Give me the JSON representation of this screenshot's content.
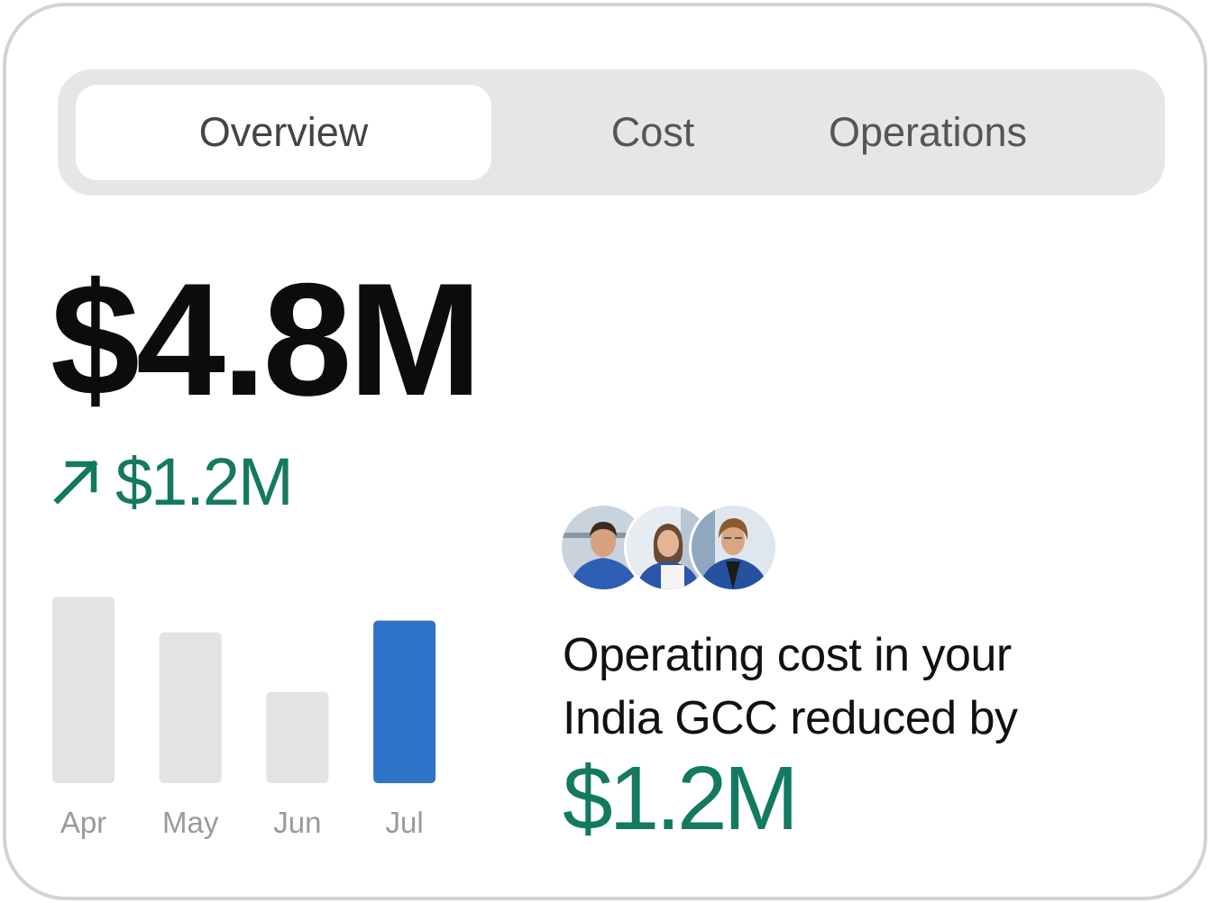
{
  "tabs": [
    {
      "label": "Overview",
      "active": true
    },
    {
      "label": "Cost",
      "active": false
    },
    {
      "label": "Operations",
      "active": false
    }
  ],
  "summary": {
    "total": "$4.8M",
    "change": "$1.2M",
    "change_icon": "arrow-up-right-icon"
  },
  "colors": {
    "accent_green": "#137a5f",
    "bar_highlight": "#2f74c8",
    "bar_default": "#e3e3e3"
  },
  "chart_data": {
    "type": "bar",
    "categories": [
      "Apr",
      "May",
      "Jun",
      "Jul"
    ],
    "values": [
      4.7,
      3.8,
      2.3,
      4.1
    ],
    "highlight_index": 3,
    "ylim": [
      0,
      5
    ],
    "grid": false,
    "title": "",
    "xlabel": "",
    "ylabel": ""
  },
  "avatars": [
    {
      "name": "avatar-man-blue-shirt"
    },
    {
      "name": "avatar-woman-blazer"
    },
    {
      "name": "avatar-man-glasses"
    }
  ],
  "message": {
    "line1": "Operating cost in your",
    "line2": "India GCC reduced by",
    "amount": "$1.2M"
  }
}
